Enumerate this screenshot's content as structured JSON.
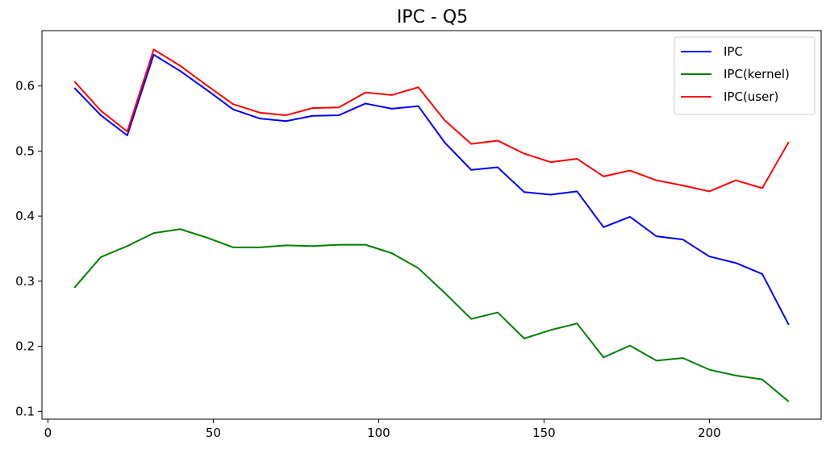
{
  "chart_data": {
    "type": "line",
    "title": "IPC - Q5",
    "xlabel": "",
    "ylabel": "",
    "xlim": [
      -1.8,
      233.8
    ],
    "ylim": [
      0.088,
      0.685
    ],
    "x_ticks": [
      0,
      50,
      100,
      150,
      200
    ],
    "y_ticks": [
      0.1,
      0.2,
      0.3,
      0.4,
      0.5,
      0.6
    ],
    "x_tick_labels": [
      "0",
      "50",
      "100",
      "150",
      "200"
    ],
    "y_tick_labels": [
      "0.1",
      "0.2",
      "0.3",
      "0.4",
      "0.5",
      "0.6"
    ],
    "grid": false,
    "legend_position": "top-right",
    "x": [
      8,
      16,
      24,
      32,
      40,
      48,
      56,
      64,
      72,
      80,
      88,
      96,
      104,
      112,
      120,
      128,
      136,
      144,
      152,
      160,
      168,
      176,
      184,
      192,
      200,
      208,
      216,
      224
    ],
    "series": [
      {
        "name": "IPC",
        "color": "#0000ff",
        "values": [
          0.597,
          0.555,
          0.524,
          0.648,
          0.623,
          0.594,
          0.564,
          0.55,
          0.546,
          0.554,
          0.555,
          0.573,
          0.565,
          0.569,
          0.513,
          0.471,
          0.475,
          0.437,
          0.433,
          0.438,
          0.383,
          0.399,
          0.369,
          0.364,
          0.338,
          0.328,
          0.311,
          0.233
        ]
      },
      {
        "name": "IPC(kernel)",
        "color": "#008000",
        "values": [
          0.29,
          0.337,
          0.354,
          0.374,
          0.38,
          0.367,
          0.352,
          0.352,
          0.355,
          0.354,
          0.356,
          0.356,
          0.343,
          0.32,
          0.282,
          0.242,
          0.252,
          0.212,
          0.225,
          0.235,
          0.183,
          0.201,
          0.178,
          0.182,
          0.164,
          0.155,
          0.149,
          0.115
        ]
      },
      {
        "name": "IPC(user)",
        "color": "#ff0000",
        "values": [
          0.607,
          0.562,
          0.53,
          0.656,
          0.631,
          0.601,
          0.572,
          0.559,
          0.555,
          0.566,
          0.567,
          0.59,
          0.586,
          0.598,
          0.547,
          0.511,
          0.516,
          0.496,
          0.483,
          0.488,
          0.461,
          0.47,
          0.455,
          0.447,
          0.438,
          0.455,
          0.443,
          0.514
        ]
      }
    ]
  }
}
